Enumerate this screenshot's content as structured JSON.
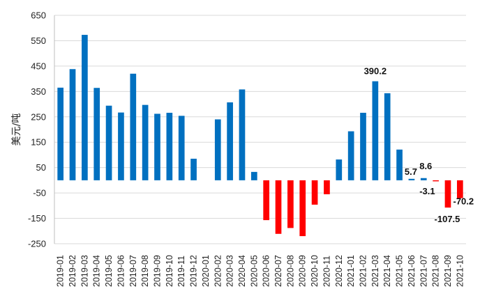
{
  "chart_data": {
    "type": "bar",
    "title": "",
    "xlabel": "",
    "ylabel": "美元/吨",
    "ylim": [
      -250,
      650
    ],
    "yticks": [
      650,
      550,
      450,
      350,
      250,
      150,
      50,
      -50,
      -150,
      -250
    ],
    "grid": "horizontal",
    "legend": "none",
    "categories": [
      "2019-01",
      "2019-02",
      "2019-03",
      "2019-04",
      "2019-05",
      "2019-06",
      "2019-07",
      "2019-08",
      "2019-09",
      "2019-10",
      "2019-11",
      "2019-12",
      "2020-01",
      "2020-02",
      "2020-03",
      "2020-04",
      "2020-05",
      "2020-06",
      "2020-07",
      "2020-08",
      "2020-09",
      "2020-10",
      "2020-11",
      "2020-12",
      "2021-01",
      "2021-02",
      "2021-03",
      "2021-04",
      "2021-05",
      "2021-06",
      "2021-07",
      "2021-08",
      "2021-09",
      "2021-10"
    ],
    "values": [
      365,
      438,
      573,
      364,
      294,
      267,
      420,
      297,
      262,
      266,
      254,
      85,
      null,
      240,
      307,
      358,
      33,
      -157,
      -211,
      -188,
      -220,
      -96,
      -55,
      82,
      193,
      266,
      390.2,
      343,
      121,
      5.7,
      8.6,
      -3.1,
      -107.5,
      -70.2
    ],
    "data_labels": [
      {
        "category": "2021-03",
        "text": "390.2"
      },
      {
        "category": "2021-06",
        "text": "5.7"
      },
      {
        "category": "2021-07",
        "text": "8.6"
      },
      {
        "category": "2021-08",
        "text": "-3.1"
      },
      {
        "category": "2021-09",
        "text": "-107.5"
      },
      {
        "category": "2021-10",
        "text": "-70.2"
      }
    ],
    "colors": {
      "positive": "#0070c0",
      "negative": "#ff0000",
      "grid": "#d9d9d9"
    }
  }
}
